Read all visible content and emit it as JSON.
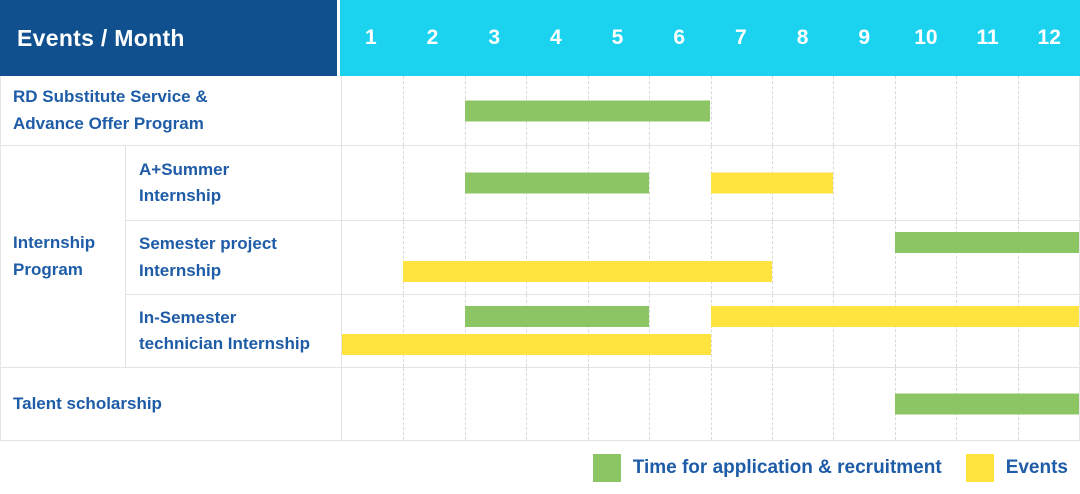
{
  "header": {
    "title": "Events / Month",
    "months": [
      "1",
      "2",
      "3",
      "4",
      "5",
      "6",
      "7",
      "8",
      "9",
      "10",
      "11",
      "12"
    ]
  },
  "rows": {
    "rd": {
      "label": "RD Substitute Service &\nAdvance Offer Program"
    },
    "group": {
      "label": "Internship\nProgram"
    },
    "a_summer": {
      "label": "A+Summer\nInternship"
    },
    "semester_project": {
      "label": "Semester project\nInternship"
    },
    "in_semester": {
      "label": "In-Semester\ntechnician Internship"
    },
    "talent": {
      "label": "Talent scholarship"
    }
  },
  "legend": {
    "items": [
      {
        "type": "application",
        "label": "Time for application & recruitment"
      },
      {
        "type": "event",
        "label": "Events"
      }
    ]
  },
  "colors": {
    "application": "#8CC563",
    "event": "#FFE33E",
    "header_blue": "#10508F",
    "months_cyan": "#1BD3EE",
    "label_text_blue": "#1E5CA7"
  },
  "chart_data": {
    "type": "gantt",
    "x_axis": {
      "label": "Month",
      "ticks": [
        1,
        2,
        3,
        4,
        5,
        6,
        7,
        8,
        9,
        10,
        11,
        12
      ],
      "range": [
        1,
        12
      ]
    },
    "grid": "dashed-vertical-month-lines",
    "legend_position": "bottom-right",
    "legend": [
      {
        "color": "#8CC563",
        "label": "Time for application & recruitment"
      },
      {
        "color": "#FFE33E",
        "label": "Events"
      }
    ],
    "tasks": [
      {
        "row": "RD Substitute Service & Advance Offer Program",
        "group": null,
        "bars": [
          {
            "type": "application",
            "start": 3,
            "end": 6,
            "lane": "center"
          }
        ]
      },
      {
        "row": "A+Summer Internship",
        "group": "Internship Program",
        "bars": [
          {
            "type": "application",
            "start": 3,
            "end": 5,
            "lane": "center"
          },
          {
            "type": "event",
            "start": 7,
            "end": 8,
            "lane": "center"
          }
        ]
      },
      {
        "row": "Semester project Internship",
        "group": "Internship Program",
        "bars": [
          {
            "type": "application",
            "start": 10,
            "end": 12,
            "lane": "top"
          },
          {
            "type": "event",
            "start": 2,
            "end": 7,
            "lane": "bottom"
          }
        ]
      },
      {
        "row": "In-Semester technician Internship",
        "group": "Internship Program",
        "bars": [
          {
            "type": "application",
            "start": 3,
            "end": 5,
            "lane": "top"
          },
          {
            "type": "event",
            "start": 7,
            "end": 12,
            "lane": "top"
          },
          {
            "type": "event",
            "start": 1,
            "end": 6,
            "lane": "bottom"
          }
        ]
      },
      {
        "row": "Talent scholarship",
        "group": null,
        "bars": [
          {
            "type": "application",
            "start": 10,
            "end": 12,
            "lane": "center"
          }
        ]
      }
    ]
  }
}
